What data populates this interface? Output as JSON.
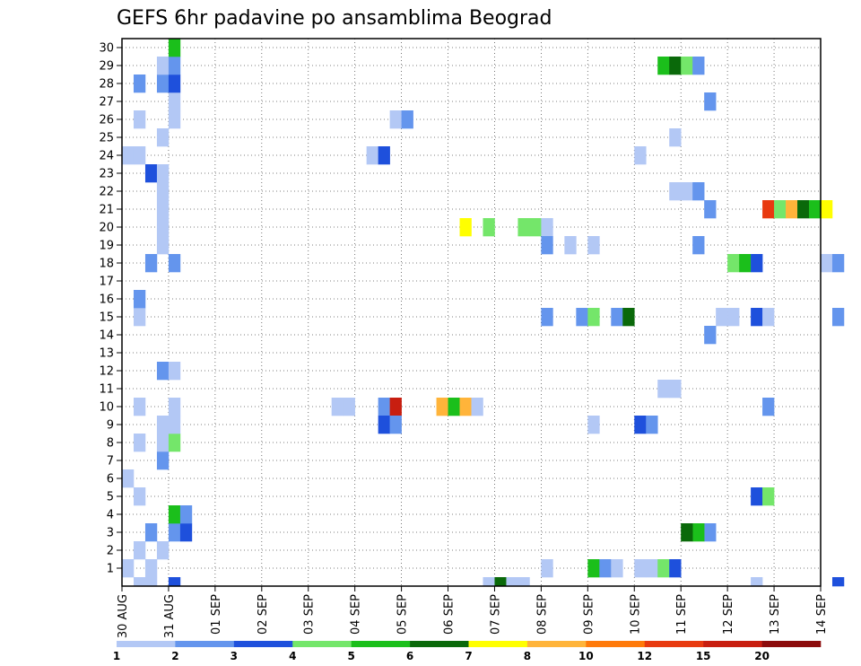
{
  "chart_data": {
    "type": "heatmap",
    "title": "GEFS 6hr padavine po ansamblima Beograd",
    "xlabel": "",
    "ylabel": "",
    "x_tick_labels": [
      "30 AUG",
      "31 AUG",
      "01 SEP",
      "02 SEP",
      "03 SEP",
      "04 SEP",
      "05 SEP",
      "06 SEP",
      "07 SEP",
      "08 SEP",
      "09 SEP",
      "10 SEP",
      "11 SEP",
      "12 SEP",
      "13 SEP",
      "14 SEP"
    ],
    "x_range_days": [
      0,
      15
    ],
    "steps_per_day": 4,
    "y_tick_labels": [
      "1",
      "2",
      "3",
      "4",
      "5",
      "6",
      "7",
      "8",
      "9",
      "10",
      "11",
      "12",
      "13",
      "14",
      "15",
      "16",
      "17",
      "18",
      "19",
      "20",
      "21",
      "22",
      "23",
      "24",
      "25",
      "26",
      "27",
      "28",
      "29",
      "30"
    ],
    "y_range": [
      0,
      30
    ],
    "grid": true,
    "legend": {
      "placement": "bottom",
      "bins": [
        {
          "label": "1",
          "color": "#b3c8f5"
        },
        {
          "label": "2",
          "color": "#6495ed"
        },
        {
          "label": "3",
          "color": "#1e50dc"
        },
        {
          "label": "4",
          "color": "#74e66a"
        },
        {
          "label": "5",
          "color": "#1bbf1b"
        },
        {
          "label": "6",
          "color": "#0a690a"
        },
        {
          "label": "7",
          "color": "#ffff00"
        },
        {
          "label": "8",
          "color": "#ffb43a"
        },
        {
          "label": "10",
          "color": "#ff7a0a"
        },
        {
          "label": "12",
          "color": "#e83a10"
        },
        {
          "label": "15",
          "color": "#c81e10"
        },
        {
          "label": "20",
          "color": "#8c0c0c"
        }
      ]
    },
    "cells_note": "each cell: [forecast step index (6h steps from 30 AUG 00z), ensemble member (0 = control row), precipitation class index into legend.bins]",
    "cells": [
      [
        0,
        1,
        0
      ],
      [
        2,
        1,
        0
      ],
      [
        1,
        2,
        0
      ],
      [
        3,
        2,
        0
      ],
      [
        4,
        3,
        1
      ],
      [
        2,
        3,
        1
      ],
      [
        5,
        3,
        2
      ],
      [
        4,
        4,
        4
      ],
      [
        5,
        4,
        1
      ],
      [
        1,
        5,
        0
      ],
      [
        0,
        6,
        0
      ],
      [
        3,
        7,
        1
      ],
      [
        1,
        8,
        0
      ],
      [
        3,
        8,
        0
      ],
      [
        4,
        8,
        3
      ],
      [
        3,
        9,
        0
      ],
      [
        4,
        9,
        0
      ],
      [
        1,
        10,
        0
      ],
      [
        4,
        10,
        0
      ],
      [
        3,
        12,
        1
      ],
      [
        4,
        12,
        0
      ],
      [
        1,
        15,
        0
      ],
      [
        1,
        16,
        1
      ],
      [
        2,
        18,
        1
      ],
      [
        4,
        18,
        1
      ],
      [
        3,
        19,
        0
      ],
      [
        3,
        20,
        0
      ],
      [
        3,
        21,
        0
      ],
      [
        3,
        22,
        0
      ],
      [
        2,
        23,
        2
      ],
      [
        3,
        23,
        0
      ],
      [
        0,
        24,
        0
      ],
      [
        1,
        24,
        0
      ],
      [
        3,
        25,
        0
      ],
      [
        1,
        26,
        0
      ],
      [
        4,
        26,
        0
      ],
      [
        4,
        27,
        0
      ],
      [
        1,
        28,
        1
      ],
      [
        3,
        28,
        1
      ],
      [
        4,
        28,
        2
      ],
      [
        3,
        29,
        0
      ],
      [
        4,
        29,
        1
      ],
      [
        4,
        30,
        4
      ],
      [
        1,
        0,
        0
      ],
      [
        2,
        0,
        0
      ],
      [
        4,
        0,
        2
      ],
      [
        18,
        10,
        0
      ],
      [
        19,
        10,
        0
      ],
      [
        22,
        10,
        1
      ],
      [
        23,
        10,
        10
      ],
      [
        27,
        10,
        7
      ],
      [
        28,
        10,
        4
      ],
      [
        29,
        10,
        7
      ],
      [
        30,
        10,
        0
      ],
      [
        22,
        9,
        2
      ],
      [
        23,
        9,
        1
      ],
      [
        21,
        24,
        0
      ],
      [
        22,
        24,
        2
      ],
      [
        23,
        26,
        0
      ],
      [
        24,
        26,
        1
      ],
      [
        29,
        20,
        6
      ],
      [
        31,
        20,
        3
      ],
      [
        34,
        20,
        3
      ],
      [
        35,
        20,
        3
      ],
      [
        36,
        20,
        0
      ],
      [
        36,
        19,
        1
      ],
      [
        38,
        19,
        0
      ],
      [
        40,
        19,
        0
      ],
      [
        36,
        15,
        1
      ],
      [
        39,
        15,
        1
      ],
      [
        40,
        15,
        3
      ],
      [
        42,
        15,
        1
      ],
      [
        43,
        15,
        5
      ],
      [
        36,
        1,
        0
      ],
      [
        40,
        1,
        4
      ],
      [
        41,
        1,
        1
      ],
      [
        42,
        1,
        0
      ],
      [
        31,
        0,
        0
      ],
      [
        32,
        0,
        5
      ],
      [
        33,
        0,
        0
      ],
      [
        34,
        0,
        0
      ],
      [
        44,
        1,
        0
      ],
      [
        45,
        1,
        0
      ],
      [
        46,
        1,
        3
      ],
      [
        47,
        1,
        2
      ],
      [
        44,
        9,
        2
      ],
      [
        45,
        9,
        1
      ],
      [
        40,
        9,
        0
      ],
      [
        44,
        24,
        0
      ],
      [
        47,
        25,
        0
      ],
      [
        46,
        11,
        0
      ],
      [
        47,
        11,
        0
      ],
      [
        46,
        29,
        4
      ],
      [
        47,
        29,
        5
      ],
      [
        48,
        29,
        3
      ],
      [
        49,
        29,
        1
      ],
      [
        50,
        27,
        1
      ],
      [
        47,
        22,
        0
      ],
      [
        48,
        22,
        0
      ],
      [
        49,
        22,
        1
      ],
      [
        50,
        21,
        1
      ],
      [
        49,
        19,
        1
      ],
      [
        52,
        18,
        3
      ],
      [
        53,
        18,
        4
      ],
      [
        54,
        18,
        2
      ],
      [
        51,
        15,
        0
      ],
      [
        52,
        15,
        0
      ],
      [
        50,
        14,
        1
      ],
      [
        50,
        3,
        1
      ],
      [
        49,
        3,
        4
      ],
      [
        48,
        3,
        5
      ],
      [
        55,
        21,
        9
      ],
      [
        56,
        21,
        3
      ],
      [
        57,
        21,
        7
      ],
      [
        58,
        21,
        5
      ],
      [
        59,
        21,
        4
      ],
      [
        60,
        21,
        6
      ],
      [
        60,
        18,
        0
      ],
      [
        61,
        18,
        1
      ],
      [
        54,
        15,
        2
      ],
      [
        55,
        15,
        0
      ],
      [
        61,
        15,
        1
      ],
      [
        55,
        10,
        1
      ],
      [
        54,
        5,
        2
      ],
      [
        55,
        5,
        3
      ],
      [
        54,
        0,
        0
      ],
      [
        61,
        0,
        2
      ]
    ]
  }
}
